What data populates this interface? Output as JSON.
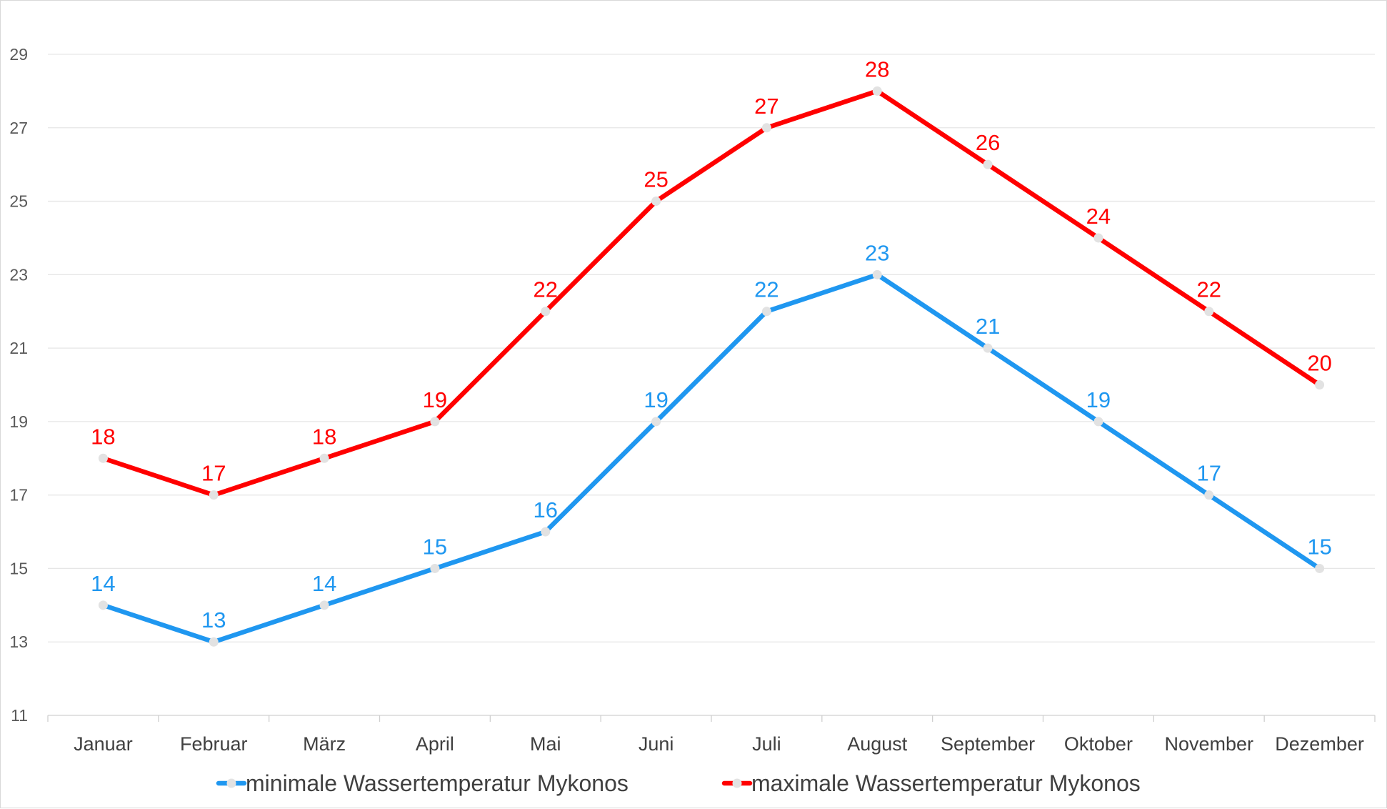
{
  "chart_data": {
    "type": "line",
    "categories": [
      "Januar",
      "Februar",
      "März",
      "April",
      "Mai",
      "Juni",
      "Juli",
      "August",
      "September",
      "Oktober",
      "November",
      "Dezember"
    ],
    "series": [
      {
        "name": "minimale Wassertemperatur Mykonos",
        "color": "#1f97f0",
        "values": [
          14,
          13,
          14,
          15,
          16,
          19,
          22,
          23,
          21,
          19,
          17,
          15
        ]
      },
      {
        "name": "maximale Wassertemperatur Mykonos",
        "color": "#ff0000",
        "values": [
          18,
          17,
          18,
          19,
          22,
          25,
          27,
          28,
          26,
          24,
          22,
          20
        ]
      }
    ],
    "ylim": [
      11,
      29
    ],
    "yticks": [
      11,
      13,
      15,
      17,
      19,
      21,
      23,
      25,
      27,
      29
    ],
    "grid": true,
    "legend_position": "bottom",
    "marker_color": "#e2e2e2",
    "title": "",
    "xlabel": "",
    "ylabel": ""
  }
}
